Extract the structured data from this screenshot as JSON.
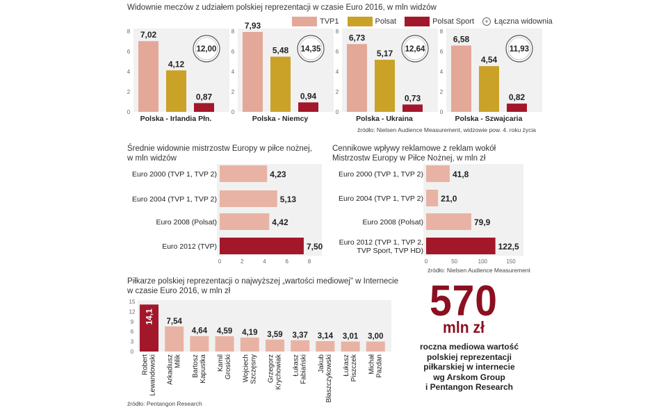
{
  "colors": {
    "tvp1": "#e3a898",
    "polsat": "#c9a227",
    "polsat_sport": "#a3172b",
    "light_bar": "#e8b3a4",
    "dark_bar": "#a3172b",
    "accent_text": "#8b1020",
    "panel_bg": "#f1f1f1"
  },
  "legend": {
    "items": [
      "TVP1",
      "Polsat",
      "Polsat Sport"
    ],
    "total_label": "Łączna widownia",
    "total_icon": "+"
  },
  "chart_data": [
    {
      "type": "bar",
      "title": "Widownie meczów z udziałem polskiej reprezentacji w czasie Euro 2016, w mln widzów",
      "series_names": [
        "TVP1",
        "Polsat",
        "Polsat Sport"
      ],
      "ylim": [
        0,
        8
      ],
      "yticks": [
        "0",
        "2",
        "4",
        "6",
        "8"
      ],
      "groups": [
        {
          "name": "Polska - Irlandia Płn.",
          "values": [
            7.02,
            4.12,
            0.87
          ],
          "labels": [
            "7,02",
            "4,12",
            "0,87"
          ],
          "total": "12,00"
        },
        {
          "name": "Polska - Niemcy",
          "values": [
            7.93,
            5.48,
            0.94
          ],
          "labels": [
            "7,93",
            "5,48",
            "0,94"
          ],
          "total": "14,35"
        },
        {
          "name": "Polska - Ukraina",
          "values": [
            6.73,
            5.17,
            0.73
          ],
          "labels": [
            "6,73",
            "5,17",
            "0,73"
          ],
          "total": "12,64"
        },
        {
          "name": "Polska - Szwajcaria",
          "values": [
            6.58,
            4.54,
            0.82
          ],
          "labels": [
            "6,58",
            "4,54",
            "0,82"
          ],
          "total": "11,93"
        }
      ],
      "source": "źródło: Nielsen Audience Measurement, widzowie pow. 4. roku życia"
    },
    {
      "type": "bar",
      "orientation": "horizontal",
      "title": "Średnie widownie mistrzostw Europy w piłce nożnej, w mln widzów",
      "categories": [
        "Euro 2000 (TVP 1, TVP 2)",
        "Euro 2004 (TVP 1, TVP 2)",
        "Euro 2008 (Polsat)",
        "Euro 2012 (TVP)"
      ],
      "values": [
        4.23,
        5.13,
        4.42,
        7.5
      ],
      "labels": [
        "4,23",
        "5,13",
        "4,42",
        "7,50"
      ],
      "xlim": [
        0,
        8
      ],
      "xticks": [
        "0",
        "2",
        "4",
        "6",
        "8"
      ]
    },
    {
      "type": "bar",
      "orientation": "horizontal",
      "title": "Cennikowe wpływy reklamowe z reklam wokół Mistrzostw Europy w Piłce Nożnej, w mln zł",
      "categories": [
        "Euro 2000 (TVP 1, TVP 2)",
        "Euro 2004 (TVP 1, TVP 2)",
        "Euro 2008 (Polsat)",
        "Euro 2012 (TVP 1, TVP 2, TVP Sport, TVP HD)"
      ],
      "values": [
        41.8,
        21.0,
        79.9,
        122.5
      ],
      "labels": [
        "41,8",
        "21,0",
        "79,9",
        "122,5"
      ],
      "xlim": [
        0,
        150
      ],
      "xticks": [
        "0",
        "50",
        "100",
        "150"
      ],
      "source": "źródło: Nielsen Audience Measurement"
    },
    {
      "type": "bar",
      "title": "Piłkarze polskiej reprezentacji o najwyższej „wartości mediowej\" w Internecie w czasie Euro 2016, w mln zł",
      "categories": [
        "Robert Lewandowski",
        "Arkadiusz Milik",
        "Bartosz Kapustka",
        "Kamil Grosicki",
        "Wojciech Szczęsny",
        "Grzegorz Krychowiak",
        "Łukasz Fabiański",
        "Jakub Błaszczykowski",
        "Łukasz Piszczek",
        "Michał Pazdan"
      ],
      "values": [
        14.1,
        7.54,
        4.64,
        4.59,
        4.19,
        3.59,
        3.37,
        3.14,
        3.01,
        3.0
      ],
      "labels": [
        "14,1",
        "7,54",
        "4,64",
        "4,59",
        "4,19",
        "3,59",
        "3,37",
        "3,14",
        "3,01",
        "3,00"
      ],
      "ylim": [
        0,
        15
      ],
      "yticks": [
        "0",
        "3",
        "6",
        "9",
        "12",
        "15"
      ],
      "source": "źródło: Pentangon Research"
    }
  ],
  "highlight": {
    "number": "570",
    "unit": "mln zł",
    "lines": [
      "roczna mediowa wartość",
      "polskiej reprezentacji",
      "piłkarskiej w internecie",
      "wg Arskom Group",
      "i Pentangon Research"
    ]
  }
}
